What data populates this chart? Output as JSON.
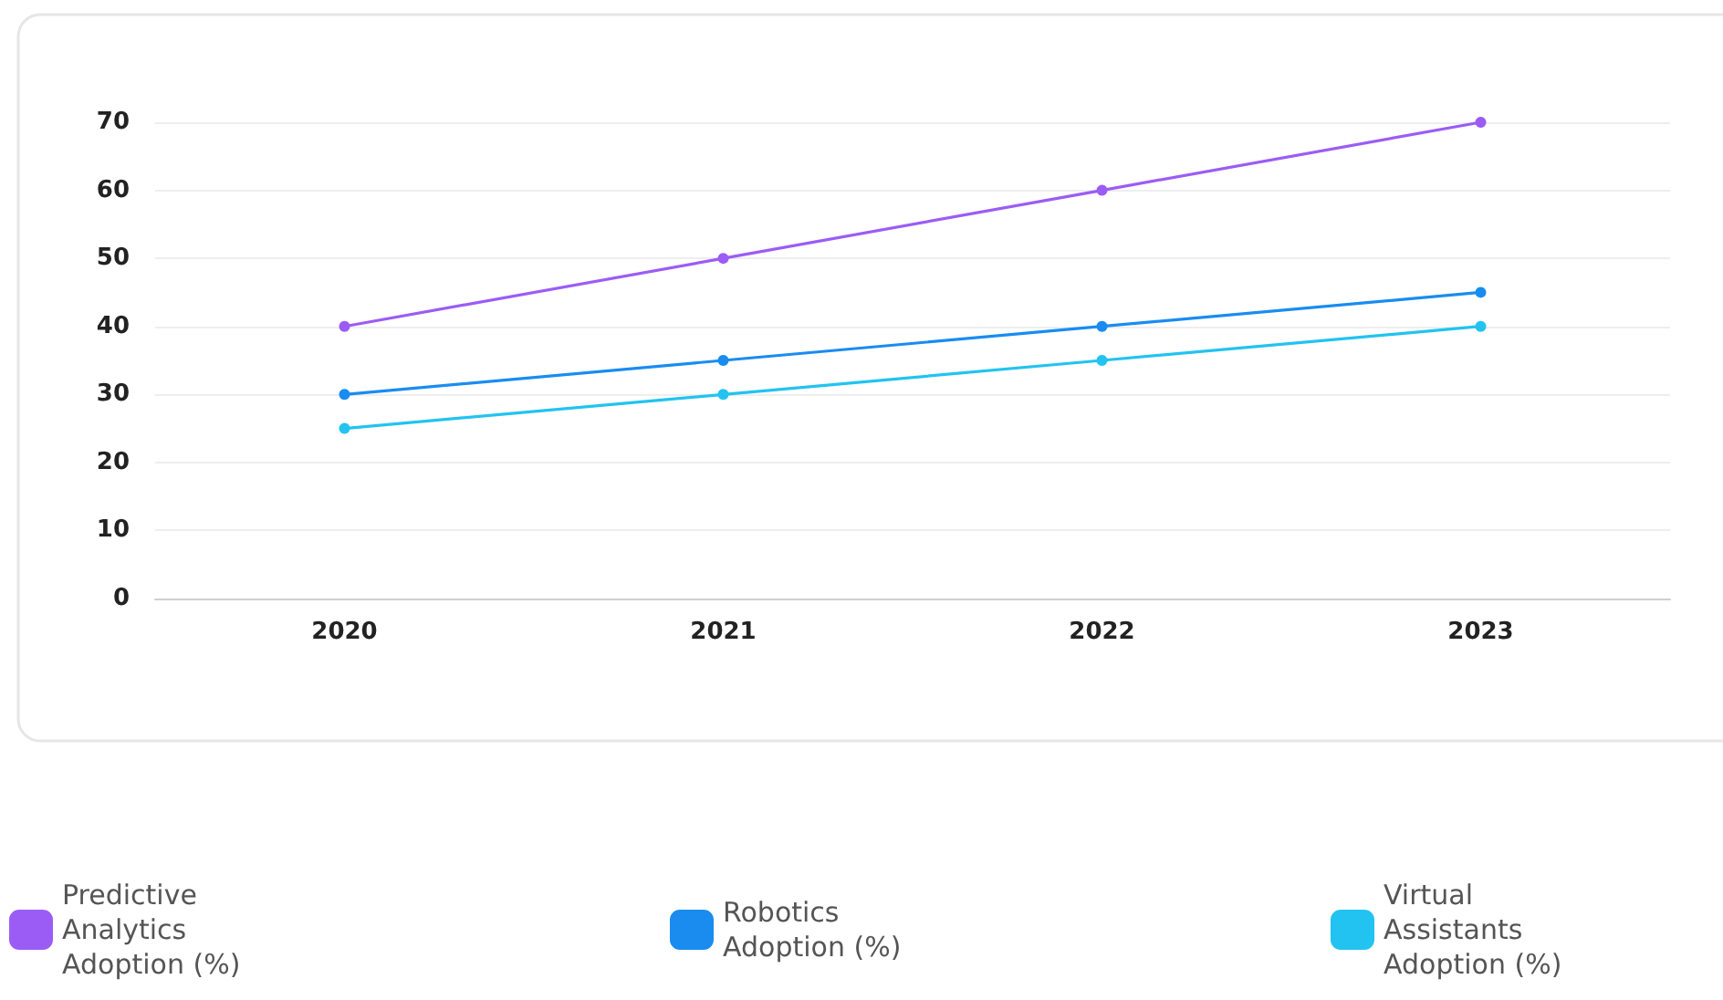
{
  "chart_data": {
    "type": "line",
    "categories": [
      "2020",
      "2021",
      "2022",
      "2023"
    ],
    "series": [
      {
        "name": "Predictive Analytics Adoption (%)",
        "color": "#9b5cf6",
        "values": [
          40,
          50,
          60,
          70
        ]
      },
      {
        "name": "Robotics Adoption (%)",
        "color": "#1a8cf0",
        "values": [
          30,
          35,
          40,
          45
        ]
      },
      {
        "name": "Virtual Assistants Adoption (%)",
        "color": "#22c3f0",
        "values": [
          25,
          30,
          35,
          40
        ]
      }
    ],
    "ylim": [
      0,
      70
    ],
    "yticks": [
      0,
      10,
      20,
      30,
      40,
      50,
      60,
      70
    ],
    "grid": "y",
    "legend": "bottom",
    "marker": "circle",
    "line_style": "solid"
  }
}
